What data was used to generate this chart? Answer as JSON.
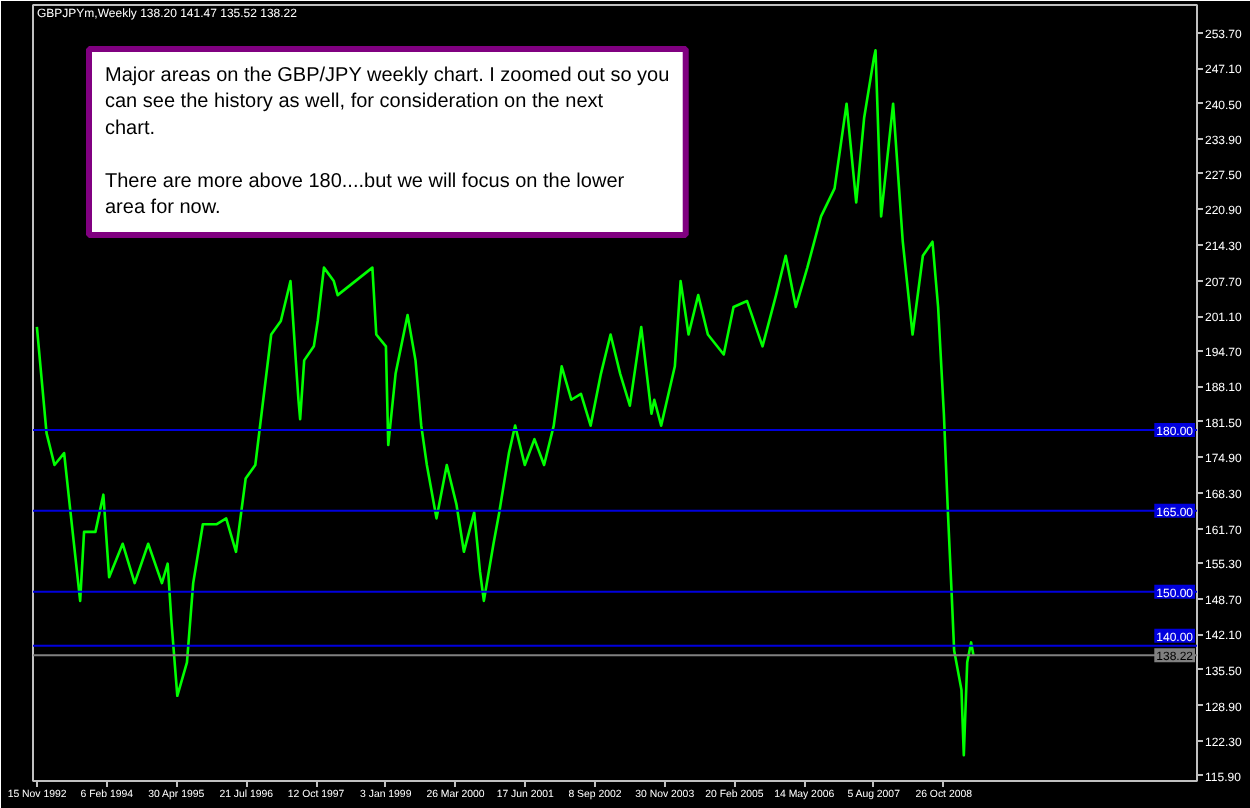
{
  "chart_data": {
    "type": "line",
    "title": "GBPJPYm,Weekly  138.20 141.47 135.52 138.22",
    "annotations": [
      "Major areas on the GBP/JPY weekly chart. I zoomed out so you can see the history as well, for consideration on the next chart.\n\nThere are more above 180....but we will focus on the lower area for now."
    ],
    "x": [
      "1992-11-14",
      "1993-01-15",
      "1993-03-07",
      "1993-05-08",
      "1993-06-18",
      "1993-08-19",
      "1993-09-13",
      "1993-11-25",
      "1994-01-15",
      "1994-02-21",
      "1994-05-19",
      "1994-08-04",
      "1994-10-30",
      "1995-01-26",
      "1995-03-04",
      "1995-03-29",
      "1995-05-05",
      "1995-07-06",
      "1995-08-15",
      "1995-10-16",
      "1996-01-11",
      "1996-03-14",
      "1996-05-16",
      "1996-07-17",
      "1996-09-17",
      "1996-10-27",
      "1996-12-28",
      "1997-02-28",
      "1997-05-01",
      "1997-06-21",
      "1997-07-02",
      "1997-07-28",
      "1997-09-28",
      "1997-10-23",
      "1997-12-02",
      "1998-02-03",
      "1998-02-28",
      "1998-10-09",
      "1998-11-03",
      "1999-01-04",
      "1999-01-19",
      "1999-03-07",
      "1999-05-23",
      "1999-07-13",
      "1999-08-19",
      "1999-09-24",
      "1999-11-25",
      "2000-01-30",
      "2000-04-01",
      "2000-05-19",
      "2000-07-24",
      "2000-08-30",
      "2000-09-24",
      "2000-11-25",
      "2001-01-01",
      "2001-03-04",
      "2001-04-13",
      "2001-06-14",
      "2001-08-15",
      "2001-10-16",
      "2001-12-17",
      "2002-02-06",
      "2002-04-09",
      "2002-06-10",
      "2002-08-11",
      "2002-10-16",
      "2002-12-17",
      "2003-02-17",
      "2003-04-20",
      "2003-07-02",
      "2003-09-06",
      "2003-09-24",
      "2003-11-07",
      "2004-02-03",
      "2004-03-11",
      "2004-05-01",
      "2004-07-02",
      "2004-09-02",
      "2004-12-13",
      "2005-02-14",
      "2005-05-12",
      "2005-08-19",
      "2005-11-14",
      "2006-01-15",
      "2006-03-21",
      "2006-06-03",
      "2006-08-30",
      "2006-11-25",
      "2007-02-10",
      "2007-04-13",
      "2007-06-03",
      "2007-08-04",
      "2007-08-15",
      "2007-09-20",
      "2007-12-06",
      "2008-02-06",
      "2008-04-09",
      "2008-06-14",
      "2008-08-15",
      "2008-09-20",
      "2008-10-27",
      "2008-11-22",
      "2008-12-17",
      "2009-01-01",
      "2009-02-17",
      "2009-03-04",
      "2009-03-26",
      "2009-04-20",
      "2009-05-05"
    ],
    "series": [
      {
        "color": "#00ff00",
        "values": [
          199.1,
          179.4,
          173.5,
          175.7,
          164.7,
          148.3,
          161.1,
          161.1,
          168.0,
          152.7,
          158.9,
          151.6,
          158.9,
          151.6,
          155.2,
          144.2,
          130.7,
          136.9,
          151.6,
          162.5,
          162.5,
          163.6,
          157.4,
          171.0,
          173.5,
          183.0,
          197.7,
          200.2,
          207.6,
          185.6,
          182.0,
          192.9,
          195.5,
          200.2,
          210.1,
          207.6,
          205.0,
          210.1,
          197.7,
          195.5,
          177.2,
          190.4,
          201.3,
          192.9,
          180.8,
          173.5,
          163.6,
          173.5,
          166.2,
          157.4,
          164.7,
          153.8,
          148.3,
          158.9,
          164.7,
          175.7,
          180.8,
          173.5,
          178.3,
          173.5,
          180.8,
          191.8,
          185.6,
          186.7,
          180.8,
          190.4,
          197.7,
          190.4,
          184.5,
          199.1,
          183.0,
          185.6,
          180.8,
          191.8,
          207.6,
          197.7,
          205.0,
          197.7,
          194.0,
          202.8,
          203.9,
          195.5,
          205.0,
          212.3,
          202.8,
          210.1,
          219.6,
          224.8,
          240.5,
          222.2,
          237.9,
          248.9,
          250.4,
          219.6,
          240.5,
          214.9,
          197.7,
          212.3,
          214.9,
          202.8,
          183.0,
          164.7,
          149.0,
          139.1,
          131.8,
          119.7,
          136.9,
          140.6,
          138.2
        ]
      }
    ],
    "xlim": [
      "1992-10-20",
      "2013-04-10"
    ],
    "xticks": [
      {
        "value": "1992-11-15",
        "label": "15 Nov 1992"
      },
      {
        "value": "1994-02-06",
        "label": "6 Feb 1994"
      },
      {
        "value": "1995-04-30",
        "label": "30 Apr 1995"
      },
      {
        "value": "1996-07-21",
        "label": "21 Jul 1996"
      },
      {
        "value": "1997-10-12",
        "label": "12 Oct 1997"
      },
      {
        "value": "1999-01-03",
        "label": "3 Jan 1999"
      },
      {
        "value": "2000-03-26",
        "label": "26 Mar 2000"
      },
      {
        "value": "2001-06-17",
        "label": "17 Jun 2001"
      },
      {
        "value": "2002-09-08",
        "label": "8 Sep 2002"
      },
      {
        "value": "2003-11-30",
        "label": "30 Nov 2003"
      },
      {
        "value": "2005-02-20",
        "label": "20 Feb 2005"
      },
      {
        "value": "2006-05-14",
        "label": "14 May 2006"
      },
      {
        "value": "2007-08-05",
        "label": "5 Aug 2007"
      },
      {
        "value": "2008-10-26",
        "label": "26 Oct 2008"
      }
    ],
    "ylim": [
      114.9,
      258.8
    ],
    "yticks": [
      {
        "value": 253.7,
        "label": "253.70"
      },
      {
        "value": 247.1,
        "label": "247.10"
      },
      {
        "value": 240.5,
        "label": "240.50"
      },
      {
        "value": 233.9,
        "label": "233.90"
      },
      {
        "value": 227.5,
        "label": "227.50"
      },
      {
        "value": 220.9,
        "label": "220.90"
      },
      {
        "value": 214.3,
        "label": "214.30"
      },
      {
        "value": 207.7,
        "label": "207.70"
      },
      {
        "value": 201.1,
        "label": "201.10"
      },
      {
        "value": 194.7,
        "label": "194.70"
      },
      {
        "value": 188.1,
        "label": "188.10"
      },
      {
        "value": 181.5,
        "label": "181.50"
      },
      {
        "value": 174.9,
        "label": "174.90"
      },
      {
        "value": 168.3,
        "label": "168.30"
      },
      {
        "value": 161.7,
        "label": "161.70"
      },
      {
        "value": 155.3,
        "label": "155.30"
      },
      {
        "value": 148.7,
        "label": "148.70"
      },
      {
        "value": 142.1,
        "label": "142.10"
      },
      {
        "value": 135.5,
        "label": "135.50"
      },
      {
        "value": 128.9,
        "label": "128.90"
      },
      {
        "value": 122.3,
        "label": "122.30"
      },
      {
        "value": 115.9,
        "label": "115.90"
      }
    ],
    "ref_lines": [
      {
        "axis": "y",
        "value": 180.0,
        "label": "180.00",
        "color": "#0000dd"
      },
      {
        "axis": "y",
        "value": 165.0,
        "label": "165.00",
        "color": "#0000dd"
      },
      {
        "axis": "y",
        "value": 150.0,
        "label": "150.00",
        "color": "#0000dd"
      },
      {
        "axis": "y",
        "value": 140.0,
        "label": "140.00",
        "color": "#0000dd"
      },
      {
        "axis": "y",
        "value": 138.22,
        "label": "138.22",
        "color": "#808080"
      }
    ],
    "grid": false,
    "line_style": "solid"
  }
}
